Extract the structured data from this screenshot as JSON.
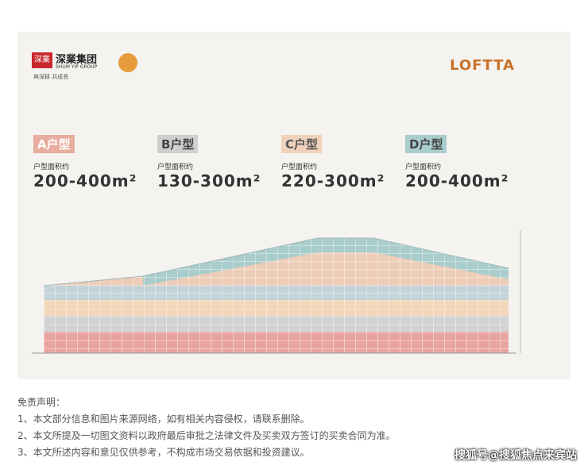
{
  "header": {
    "seal": "深業",
    "group_name": "深業集团",
    "group_name_en": "SHUM YIP GROUP",
    "slogan": "與深耕 共成長",
    "brand": "LOFTTA"
  },
  "units": [
    {
      "tag": "A户型",
      "caption": "户型面积约",
      "area": "200-400m²"
    },
    {
      "tag": "B户型",
      "caption": "户型面积约",
      "area": "130-300m²"
    },
    {
      "tag": "C户型",
      "caption": "户型面积约",
      "area": "220-300m²"
    },
    {
      "tag": "D户型",
      "caption": "户型面积约",
      "area": "200-400m²"
    }
  ],
  "disclaimer": {
    "title": "免责声明：",
    "lines": [
      "1、本文部分信息和图片来源网络，如有相关内容侵权，请联系删除。",
      "2、本文所提及一切图文资料以政府最后审批之法律文件及买卖双方签订的买卖合同为准。",
      "3、本文所述内容和意见仅供参考，不构成市场交易依据和投资建议。"
    ]
  },
  "watermark": "搜狐号@搜狐焦点来宾站"
}
